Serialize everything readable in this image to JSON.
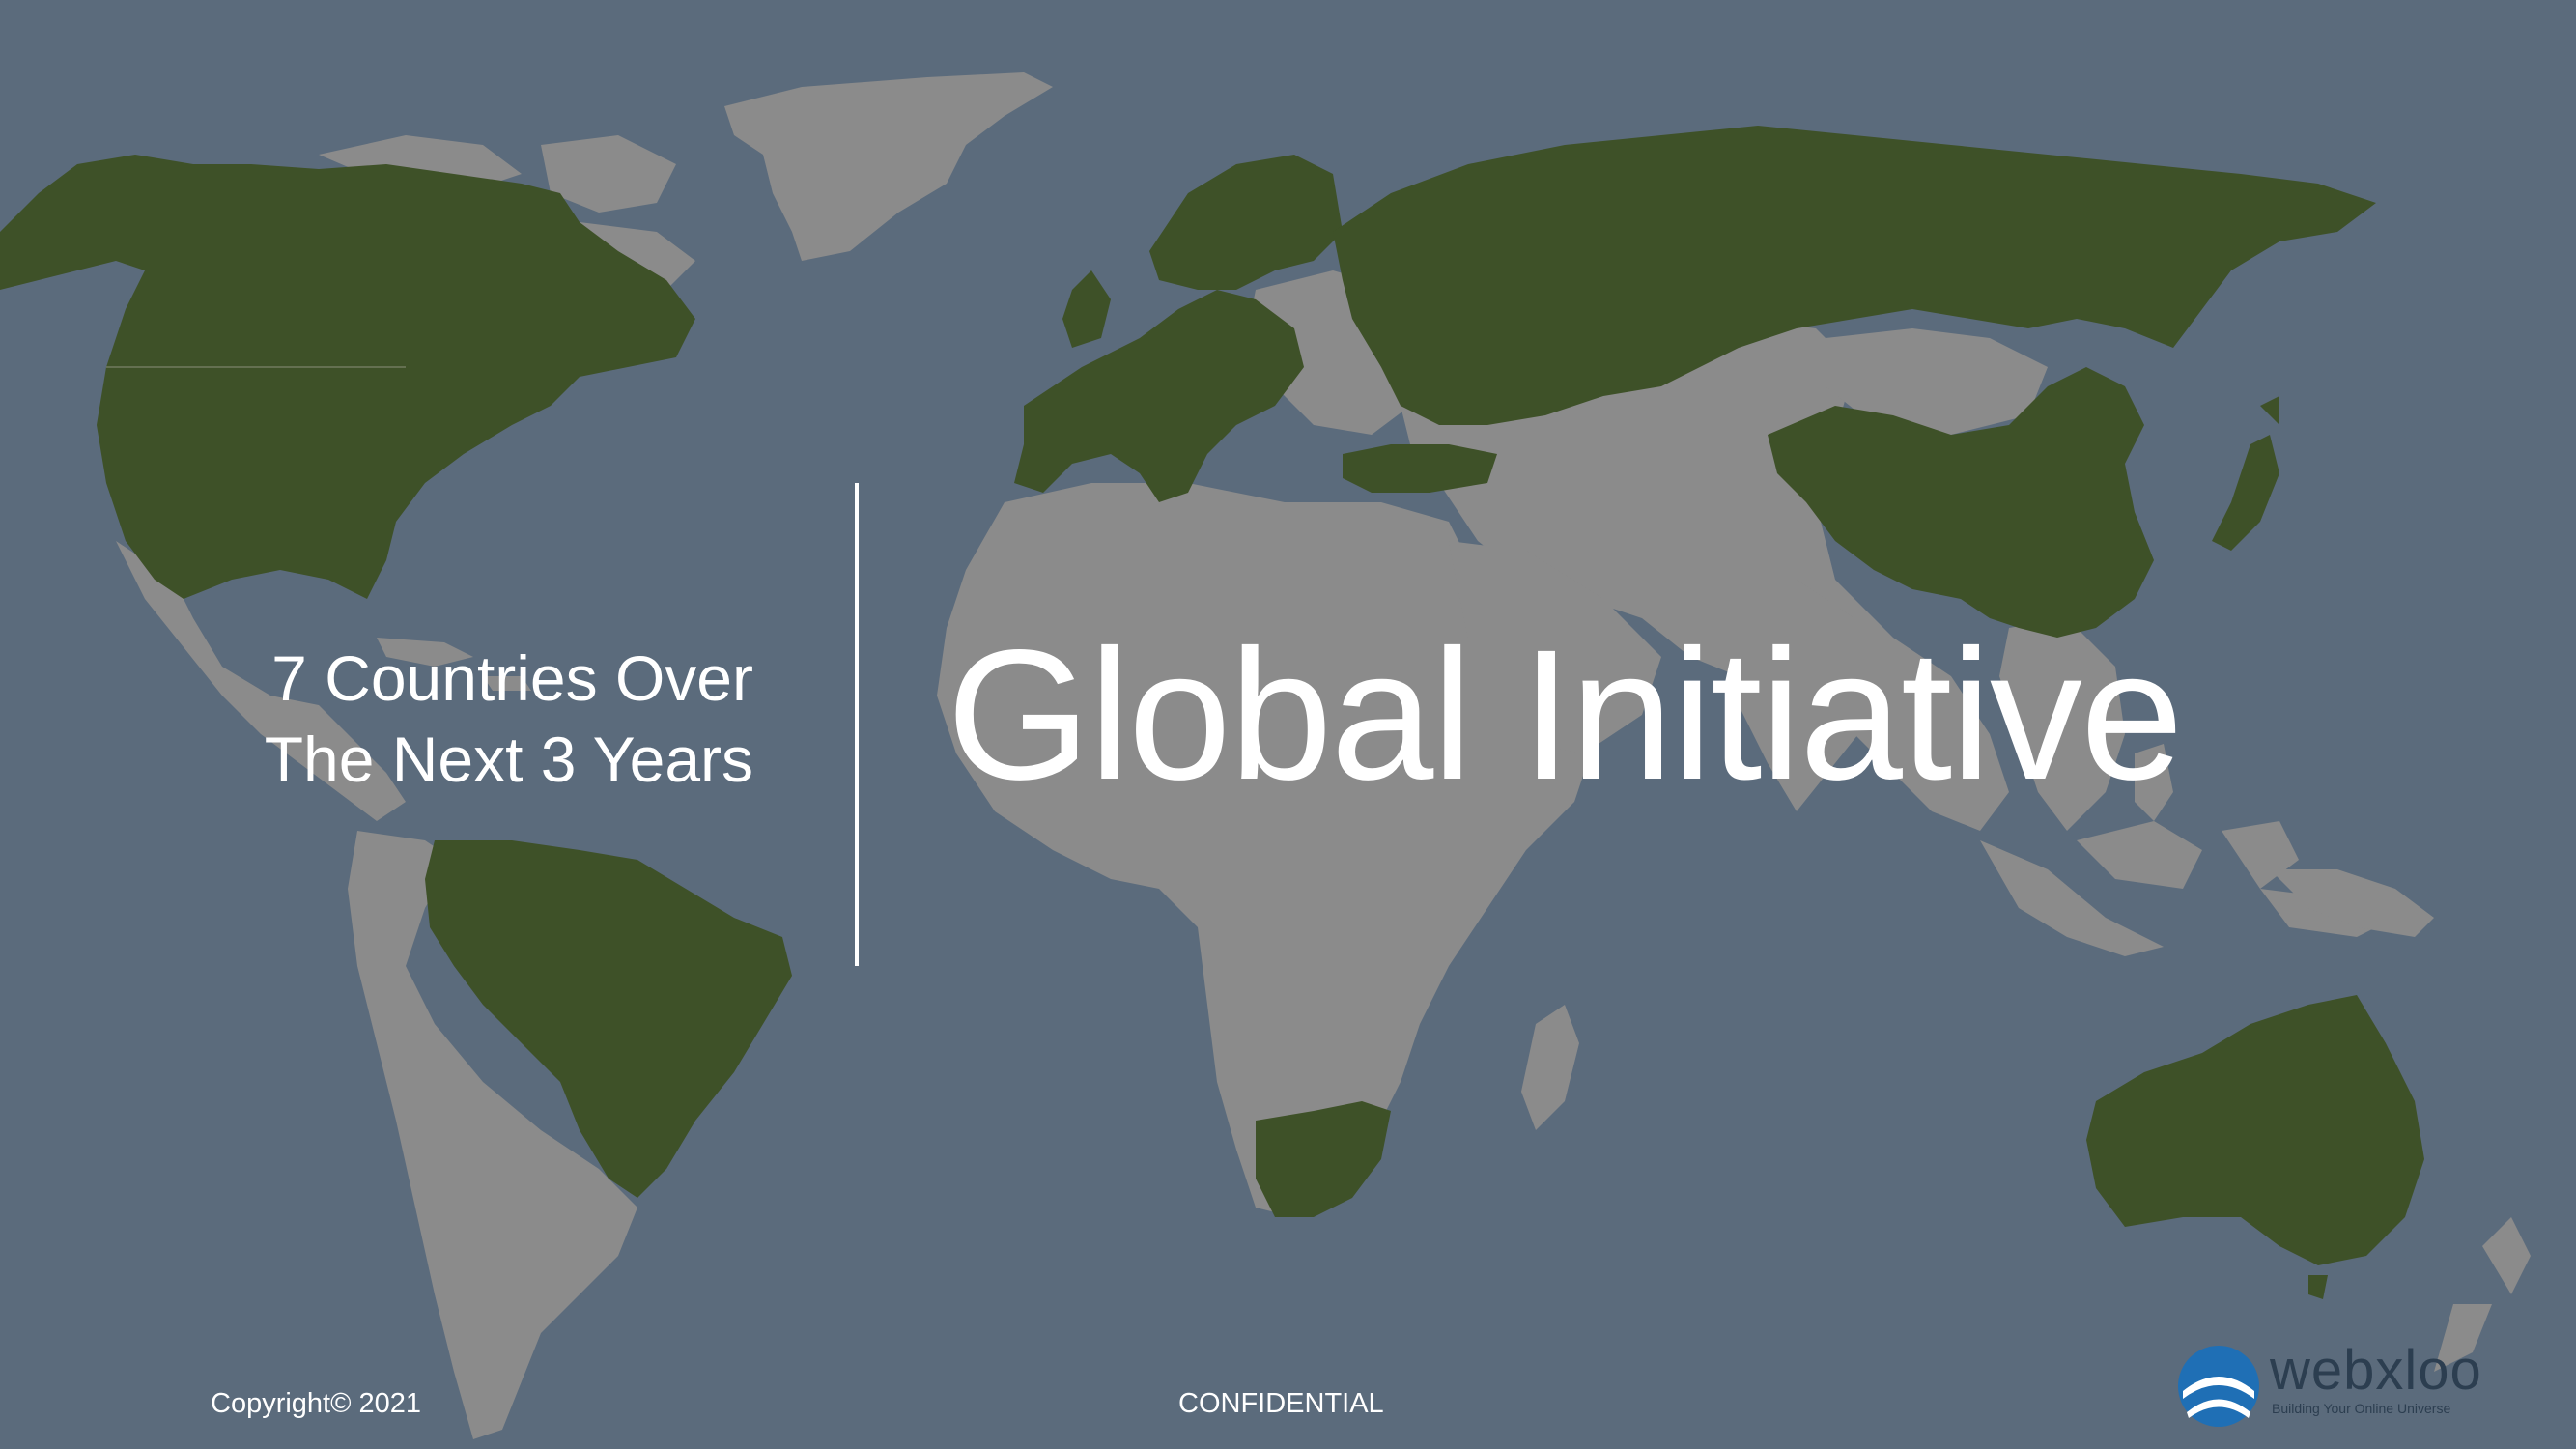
{
  "slide": {
    "title": "Global Initiative",
    "subtitle_line1": "7 Countries Over",
    "subtitle_line2": "The Next 3 Years"
  },
  "footer": {
    "copyright": "Copyright© 2021",
    "confidential": "CONFIDENTIAL"
  },
  "logo": {
    "name": "webxloo",
    "tagline": "Building Your Online Universe"
  },
  "colors": {
    "ocean": "#5b6b7c",
    "land": "#8b8b8b",
    "highlighted_land": "#3e5128",
    "text": "#ffffff",
    "logo_blue": "#1f6fb5"
  }
}
